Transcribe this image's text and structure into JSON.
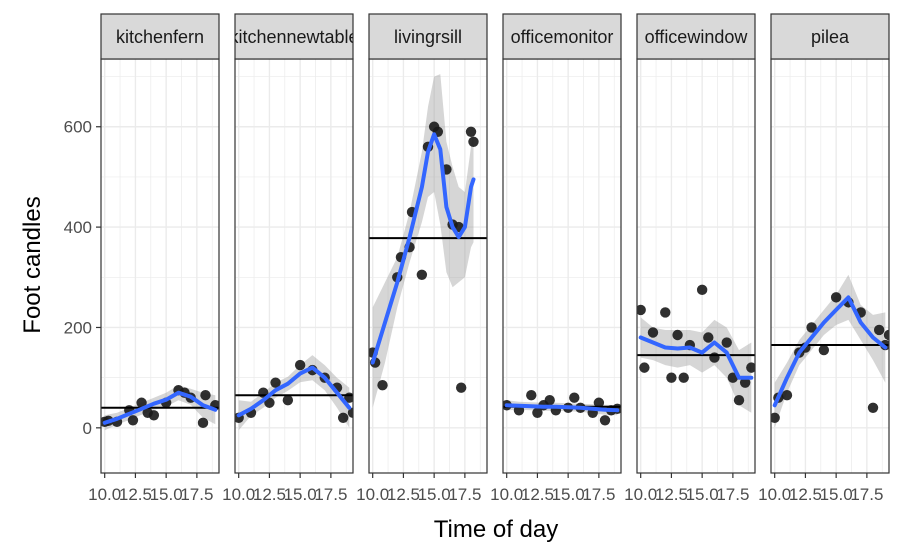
{
  "chart_data": {
    "type": "scatter",
    "facet_variable": "plant",
    "xlabel": "Time of day",
    "ylabel": "Foot candles",
    "xlim": [
      9.7,
      19.3
    ],
    "ylim": [
      -90,
      735
    ],
    "x_ticks": [
      10,
      12.5,
      15,
      17.5
    ],
    "x_tick_labels": [
      "10.0",
      "12.5",
      "15.0",
      "17.5"
    ],
    "y_ticks": [
      0,
      200,
      400,
      600
    ],
    "y_tick_labels": [
      "0",
      "200",
      "400",
      "600"
    ],
    "grid": true,
    "theme": "bw",
    "colors": {
      "points": "#1a1a1a",
      "smooth_line": "#3366FF",
      "ribbon": "#999999",
      "mean_line": "#000000",
      "strip_fill": "#d9d9d9",
      "grid": "#ebebeb"
    },
    "panels": [
      {
        "label": "kitchenfern",
        "mean": 40,
        "points": [
          [
            10,
            12
          ],
          [
            10.3,
            14
          ],
          [
            11,
            12
          ],
          [
            12,
            35
          ],
          [
            12.3,
            15
          ],
          [
            13,
            50
          ],
          [
            13.5,
            30
          ],
          [
            14,
            25
          ],
          [
            15,
            50
          ],
          [
            16,
            75
          ],
          [
            16.5,
            70
          ],
          [
            17,
            60
          ],
          [
            18,
            10
          ],
          [
            18.2,
            65
          ],
          [
            19,
            45
          ]
        ],
        "smooth": [
          [
            10,
            10
          ],
          [
            11,
            18
          ],
          [
            12,
            28
          ],
          [
            13,
            38
          ],
          [
            14,
            48
          ],
          [
            15,
            56
          ],
          [
            16,
            70
          ],
          [
            17,
            62
          ],
          [
            18,
            45
          ],
          [
            19,
            36
          ]
        ],
        "band_upper": [
          25,
          30,
          40,
          50,
          60,
          70,
          85,
          78,
          70,
          65
        ],
        "band_lower": [
          -5,
          6,
          16,
          26,
          36,
          42,
          55,
          46,
          20,
          7
        ]
      },
      {
        "label": "kitchennewtable",
        "mean": 65,
        "points": [
          [
            10,
            20
          ],
          [
            11,
            30
          ],
          [
            12,
            70
          ],
          [
            12.5,
            50
          ],
          [
            13,
            90
          ],
          [
            14,
            55
          ],
          [
            15,
            125
          ],
          [
            16,
            115
          ],
          [
            17,
            100
          ],
          [
            18,
            80
          ],
          [
            18.5,
            20
          ],
          [
            19,
            60
          ],
          [
            19.3,
            30
          ]
        ],
        "smooth": [
          [
            10,
            25
          ],
          [
            11,
            38
          ],
          [
            12,
            55
          ],
          [
            13,
            75
          ],
          [
            14,
            88
          ],
          [
            15,
            108
          ],
          [
            16,
            120
          ],
          [
            17,
            100
          ],
          [
            18,
            70
          ],
          [
            19,
            40
          ]
        ],
        "band_upper": [
          55,
          52,
          70,
          90,
          102,
          125,
          145,
          125,
          100,
          80
        ],
        "band_lower": [
          -5,
          24,
          40,
          60,
          74,
          91,
          95,
          75,
          40,
          0
        ]
      },
      {
        "label": "livingrsill",
        "mean": 378,
        "points": [
          [
            10,
            150
          ],
          [
            10.2,
            130
          ],
          [
            10.8,
            85
          ],
          [
            12,
            300
          ],
          [
            12.3,
            340
          ],
          [
            13,
            360
          ],
          [
            13.2,
            430
          ],
          [
            14,
            305
          ],
          [
            14.5,
            560
          ],
          [
            15,
            600
          ],
          [
            15.3,
            590
          ],
          [
            16,
            515
          ],
          [
            16.5,
            405
          ],
          [
            17,
            400
          ],
          [
            17.2,
            80
          ],
          [
            18,
            590
          ],
          [
            18.2,
            570
          ]
        ],
        "smooth": [
          [
            10,
            130
          ],
          [
            11,
            210
          ],
          [
            12,
            290
          ],
          [
            13,
            380
          ],
          [
            14,
            480
          ],
          [
            14.5,
            550
          ],
          [
            15,
            585
          ],
          [
            15.5,
            555
          ],
          [
            16,
            440
          ],
          [
            16.5,
            400
          ],
          [
            17,
            380
          ],
          [
            17.5,
            400
          ],
          [
            18,
            480
          ],
          [
            18.2,
            495
          ]
        ],
        "band_upper": [
          240,
          290,
          340,
          430,
          550,
          640,
          700,
          705,
          570,
          520,
          480,
          470,
          560,
          590
        ],
        "band_lower": [
          40,
          130,
          240,
          330,
          410,
          460,
          470,
          405,
          310,
          280,
          290,
          300,
          360,
          370
        ]
      },
      {
        "label": "officemonitor",
        "mean": 42,
        "points": [
          [
            10,
            45
          ],
          [
            11,
            35
          ],
          [
            12,
            65
          ],
          [
            12.5,
            30
          ],
          [
            13,
            45
          ],
          [
            13.5,
            55
          ],
          [
            14,
            35
          ],
          [
            15,
            40
          ],
          [
            15.5,
            60
          ],
          [
            16,
            40
          ],
          [
            17,
            30
          ],
          [
            17.5,
            50
          ],
          [
            18,
            15
          ],
          [
            18.5,
            35
          ],
          [
            19,
            38
          ]
        ],
        "smooth": [
          [
            10,
            45
          ],
          [
            11,
            44
          ],
          [
            12,
            43
          ],
          [
            13,
            42
          ],
          [
            14,
            42
          ],
          [
            15,
            41
          ],
          [
            16,
            40
          ],
          [
            17,
            38
          ],
          [
            18,
            36
          ],
          [
            19,
            35
          ]
        ],
        "band_upper": [
          55,
          52,
          51,
          50,
          50,
          49,
          48,
          47,
          46,
          45
        ],
        "band_lower": [
          35,
          36,
          35,
          34,
          34,
          33,
          32,
          29,
          26,
          25
        ]
      },
      {
        "label": "officewindow",
        "mean": 145,
        "points": [
          [
            10,
            235
          ],
          [
            10.3,
            120
          ],
          [
            11,
            190
          ],
          [
            12,
            230
          ],
          [
            12.5,
            100
          ],
          [
            13,
            185
          ],
          [
            13.5,
            100
          ],
          [
            14,
            165
          ],
          [
            15,
            275
          ],
          [
            15.5,
            180
          ],
          [
            16,
            140
          ],
          [
            17,
            170
          ],
          [
            17.5,
            100
          ],
          [
            18,
            55
          ],
          [
            18.5,
            90
          ],
          [
            19,
            120
          ]
        ],
        "smooth": [
          [
            10,
            180
          ],
          [
            11,
            170
          ],
          [
            12,
            160
          ],
          [
            13,
            158
          ],
          [
            14,
            160
          ],
          [
            15,
            150
          ],
          [
            16,
            170
          ],
          [
            17,
            150
          ],
          [
            18,
            100
          ],
          [
            19,
            100
          ]
        ],
        "band_upper": [
          220,
          200,
          195,
          195,
          195,
          190,
          215,
          200,
          155,
          170
        ],
        "band_lower": [
          140,
          135,
          125,
          120,
          125,
          110,
          125,
          100,
          45,
          30
        ]
      },
      {
        "label": "pilea",
        "mean": 165,
        "points": [
          [
            10,
            20
          ],
          [
            10.3,
            60
          ],
          [
            11,
            65
          ],
          [
            12,
            150
          ],
          [
            12.5,
            160
          ],
          [
            13,
            200
          ],
          [
            14,
            155
          ],
          [
            15,
            260
          ],
          [
            16,
            250
          ],
          [
            17,
            230
          ],
          [
            18,
            40
          ],
          [
            18.5,
            195
          ],
          [
            19,
            165
          ],
          [
            19.3,
            185
          ]
        ],
        "smooth": [
          [
            10,
            45
          ],
          [
            11,
            100
          ],
          [
            12,
            150
          ],
          [
            13,
            180
          ],
          [
            14,
            210
          ],
          [
            15,
            235
          ],
          [
            16,
            260
          ],
          [
            17,
            210
          ],
          [
            18,
            180
          ],
          [
            19,
            160
          ]
        ],
        "band_upper": [
          90,
          130,
          175,
          205,
          235,
          265,
          305,
          245,
          225,
          230
        ],
        "band_lower": [
          0,
          70,
          125,
          155,
          185,
          205,
          215,
          175,
          135,
          90
        ]
      }
    ]
  }
}
